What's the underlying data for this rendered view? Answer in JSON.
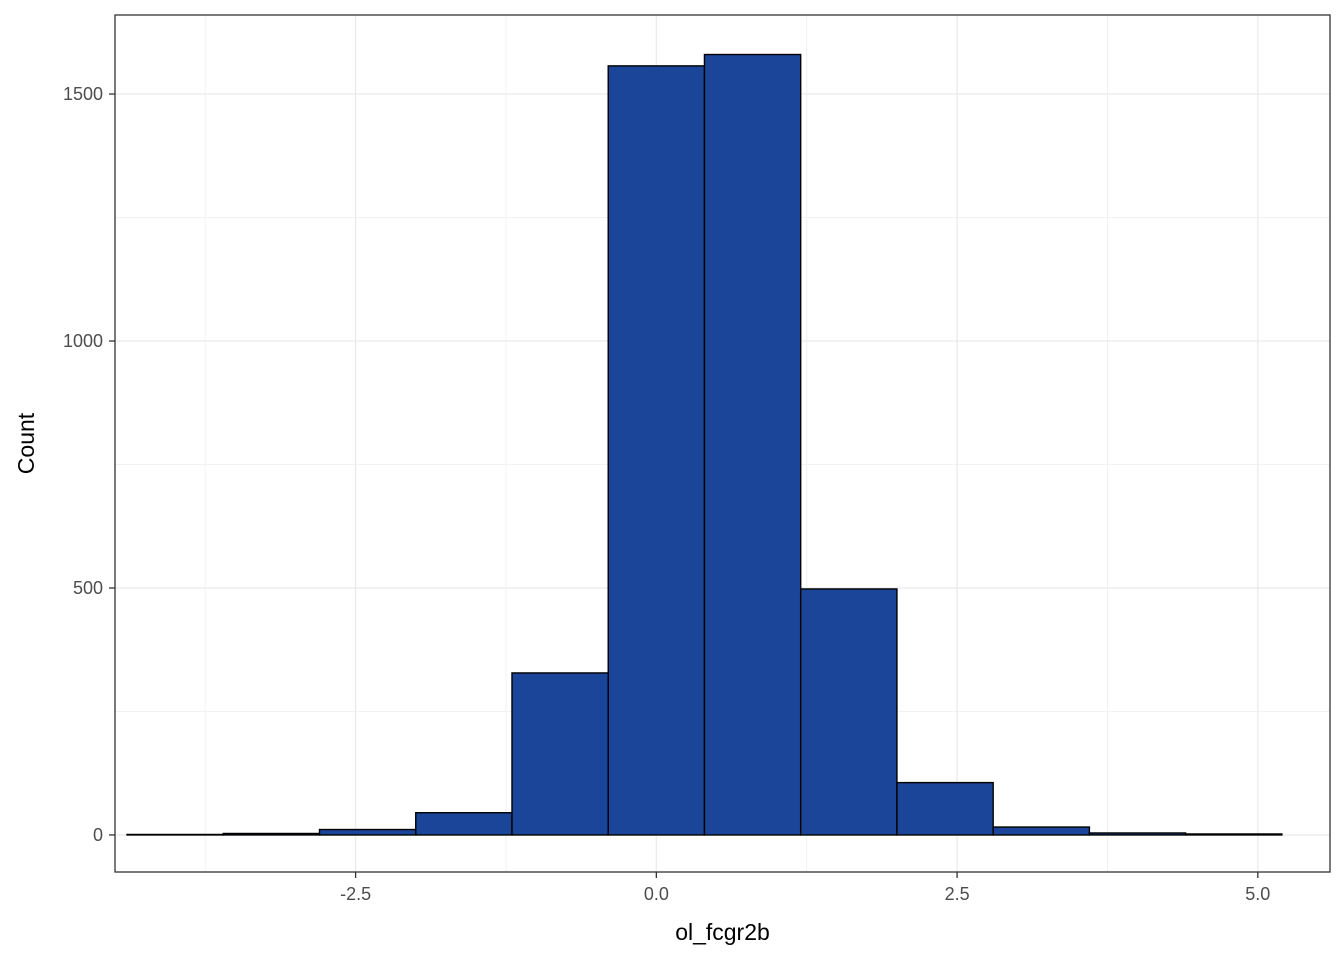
{
  "chart_data": {
    "type": "bar",
    "subtype": "histogram",
    "title": "",
    "xlabel": "ol_fcgr2b",
    "ylabel": "Count",
    "xlim": [
      -4.5,
      5.6
    ],
    "ylim": [
      -75,
      1660
    ],
    "x_ticks": [
      -2.5,
      0.0,
      2.5,
      5.0
    ],
    "x_tick_labels": [
      "-2.5",
      "0.0",
      "2.5",
      "5.0"
    ],
    "y_ticks": [
      0,
      500,
      1000,
      1500
    ],
    "y_tick_labels": [
      "0",
      "500",
      "1000",
      "1500"
    ],
    "bins": [
      {
        "x0": -4.4,
        "x1": -3.6,
        "count": 1
      },
      {
        "x0": -3.6,
        "x1": -2.8,
        "count": 3
      },
      {
        "x0": -2.8,
        "x1": -2.0,
        "count": 11
      },
      {
        "x0": -2.0,
        "x1": -1.2,
        "count": 45
      },
      {
        "x0": -1.2,
        "x1": -0.4,
        "count": 328
      },
      {
        "x0": -0.4,
        "x1": 0.4,
        "count": 1557
      },
      {
        "x0": 0.4,
        "x1": 1.2,
        "count": 1580
      },
      {
        "x0": 1.2,
        "x1": 2.0,
        "count": 498
      },
      {
        "x0": 2.0,
        "x1": 2.8,
        "count": 106
      },
      {
        "x0": 2.8,
        "x1": 3.6,
        "count": 16
      },
      {
        "x0": 3.6,
        "x1": 4.4,
        "count": 4
      },
      {
        "x0": 4.4,
        "x1": 5.2,
        "count": 2
      }
    ],
    "grid": true,
    "legend": "none",
    "colors": {
      "bar_fill": "#1a4599",
      "bar_stroke": "#000000",
      "grid_major": "#ebebeb",
      "grid_minor": "#f2f2f2",
      "panel_border": "#333333"
    }
  }
}
